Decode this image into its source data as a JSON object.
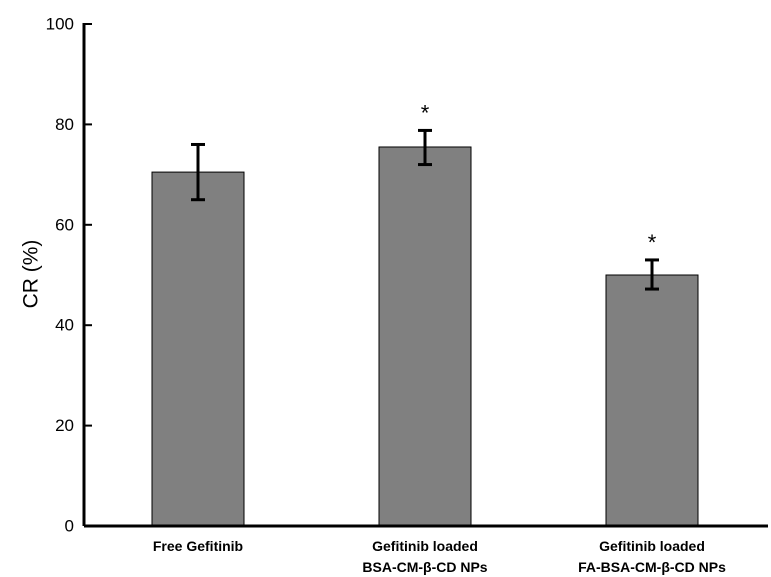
{
  "chart_data": {
    "type": "bar",
    "title": "",
    "xlabel": "",
    "ylabel": "CR (%)",
    "ylim": [
      0,
      100
    ],
    "yticks": [
      0,
      20,
      40,
      60,
      80,
      100
    ],
    "grid": false,
    "legend": "none",
    "bar_color": "#808080",
    "categories": [
      [
        "Free Gefitinib"
      ],
      [
        "Gefitinib loaded",
        "BSA-CM-β-CD NPs"
      ],
      [
        "Gefitinib loaded",
        "FA-BSA-CM-β-CD NPs"
      ]
    ],
    "values": [
      70.5,
      75.5,
      50
    ],
    "error_low": [
      65,
      72,
      47.2
    ],
    "error_high": [
      76,
      78.8,
      53
    ],
    "annotations": [
      "",
      "*",
      "*"
    ]
  }
}
